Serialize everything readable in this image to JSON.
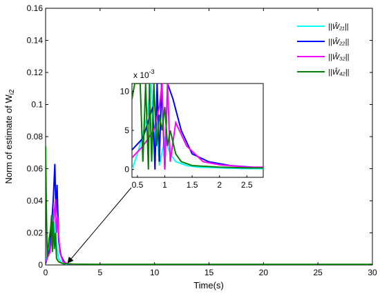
{
  "chart_data": {
    "type": "line",
    "xlabel": "Time(s)",
    "ylabel": "Norm of estimate of W",
    "ylabel_sub": "i2",
    "xlim": [
      0,
      30
    ],
    "ylim": [
      0,
      0.16
    ],
    "x_ticks": [
      "0",
      "5",
      "10",
      "15",
      "20",
      "25",
      "30"
    ],
    "y_ticks": [
      "0",
      "0.02",
      "0.04",
      "0.06",
      "0.08",
      "0.1",
      "0.12",
      "0.14",
      "0.16"
    ],
    "legend_position": "top-right",
    "grid": false,
    "series": [
      {
        "name": "||Ŵ₂₁||",
        "color": "#00ffff",
        "x": [
          0,
          0.2,
          0.5,
          0.7,
          0.8,
          0.9,
          1.0,
          1.2,
          1.5,
          2.0,
          3,
          30
        ],
        "y": [
          0.003,
          0.006,
          0.02,
          0.035,
          0.015,
          0.028,
          0.012,
          0.004,
          0.001,
          0.0003,
          0.0001,
          0.0001
        ]
      },
      {
        "name": "||Ŵ₂₂||",
        "color": "#0000ff",
        "x": [
          0,
          0.4,
          0.7,
          0.85,
          0.95,
          1.05,
          1.2,
          1.4,
          1.7,
          2.0,
          3,
          30
        ],
        "y": [
          0.001,
          0.01,
          0.04,
          0.063,
          0.03,
          0.05,
          0.015,
          0.006,
          0.002,
          0.0005,
          0.0002,
          0.0002
        ]
      },
      {
        "name": "||Ŵ₃₂||",
        "color": "#ff00ff",
        "x": [
          0,
          0.4,
          0.7,
          0.9,
          1.0,
          1.1,
          1.3,
          1.6,
          2.0,
          3,
          30
        ],
        "y": [
          0.002,
          0.008,
          0.025,
          0.041,
          0.02,
          0.03,
          0.008,
          0.002,
          0.0006,
          0.0002,
          0.0002
        ]
      },
      {
        "name": "||Ŵ₄₂||",
        "color": "#008000",
        "x": [
          0,
          0.08,
          0.15,
          0.3,
          0.45,
          0.55,
          0.62,
          0.7,
          0.8,
          0.9,
          1.0,
          1.2,
          1.6,
          2.5,
          5,
          30
        ],
        "y": [
          0.074,
          0.03,
          0.005,
          0.015,
          0.022,
          0.031,
          0.008,
          0.027,
          0.01,
          0.02,
          0.004,
          0.002,
          0.0008,
          0.0005,
          0.0004,
          0.0004
        ]
      }
    ],
    "inset": {
      "y_multiplier": "x 10",
      "y_multiplier_exp": "-3",
      "xlim": [
        0.4,
        2.8
      ],
      "ylim": [
        -1,
        11
      ],
      "x_ticks": [
        "0.5",
        "1",
        "1.5",
        "2",
        "2.5"
      ],
      "y_ticks": [
        "0",
        "5",
        "10"
      ],
      "series": [
        {
          "color": "#00ffff",
          "x": [
            0.4,
            0.5,
            0.6,
            0.68,
            0.75,
            0.8,
            0.85,
            0.9,
            1.0,
            1.1,
            1.2,
            1.4,
            1.6,
            2.0,
            2.5,
            2.8
          ],
          "y": [
            0,
            2,
            4.5,
            7,
            11,
            3,
            6,
            0.5,
            4,
            2,
            1,
            0.5,
            0.3,
            0.2,
            0.1,
            0.1
          ]
        },
        {
          "color": "#0000ff",
          "x": [
            0.4,
            0.6,
            0.78,
            0.82,
            0.86,
            0.9,
            0.94,
            1.0,
            1.05,
            1.15,
            1.3,
            1.5,
            1.8,
            2.2,
            2.8
          ],
          "y": [
            2.5,
            4,
            8,
            0,
            11,
            1,
            11,
            0,
            11,
            9,
            5,
            2,
            1,
            0.5,
            0.2
          ]
        },
        {
          "color": "#ff00ff",
          "x": [
            0.4,
            0.6,
            0.8,
            0.9,
            0.95,
            1.0,
            1.05,
            1.1,
            1.2,
            1.4,
            1.7,
            2.0,
            2.5,
            2.8
          ],
          "y": [
            1.5,
            3,
            5,
            8,
            11,
            0,
            11,
            1,
            6,
            3,
            1,
            0.6,
            0.3,
            0.3
          ]
        },
        {
          "color": "#008000",
          "x": [
            0.4,
            0.45,
            0.55,
            0.6,
            0.65,
            0.7,
            0.72,
            0.76,
            0.8,
            0.85,
            0.9,
            0.95,
            1.0,
            1.05,
            1.1,
            1.2,
            1.3,
            1.5,
            2.0,
            2.5,
            2.8
          ],
          "y": [
            9,
            11,
            11,
            1,
            11,
            0,
            11,
            1,
            11,
            3,
            7,
            5,
            8,
            3,
            5,
            2,
            1,
            0.5,
            0.3,
            0.2,
            0.2
          ]
        }
      ]
    }
  }
}
